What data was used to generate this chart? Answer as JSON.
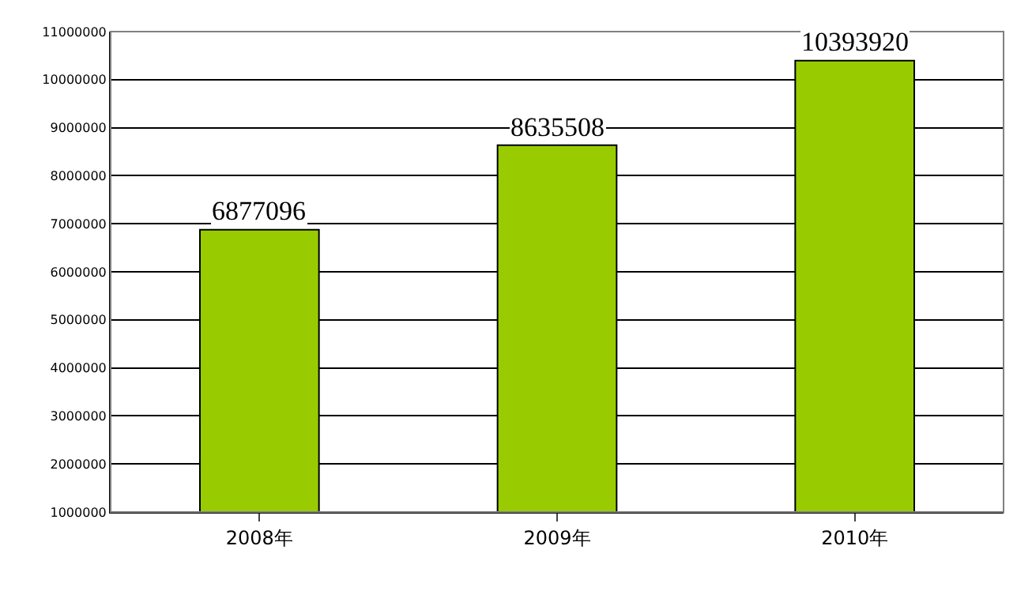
{
  "chart_data": {
    "type": "bar",
    "categories": [
      "2008年",
      "2009年",
      "2010年"
    ],
    "values": [
      6877096,
      8635508,
      10393920
    ],
    "color": "#99cc00",
    "data_labels": true,
    "ylim": [
      1000000,
      11000000
    ],
    "yticks": [
      1000000,
      2000000,
      3000000,
      4000000,
      5000000,
      6000000,
      7000000,
      8000000,
      9000000,
      10000000,
      11000000
    ],
    "grid": "y"
  }
}
